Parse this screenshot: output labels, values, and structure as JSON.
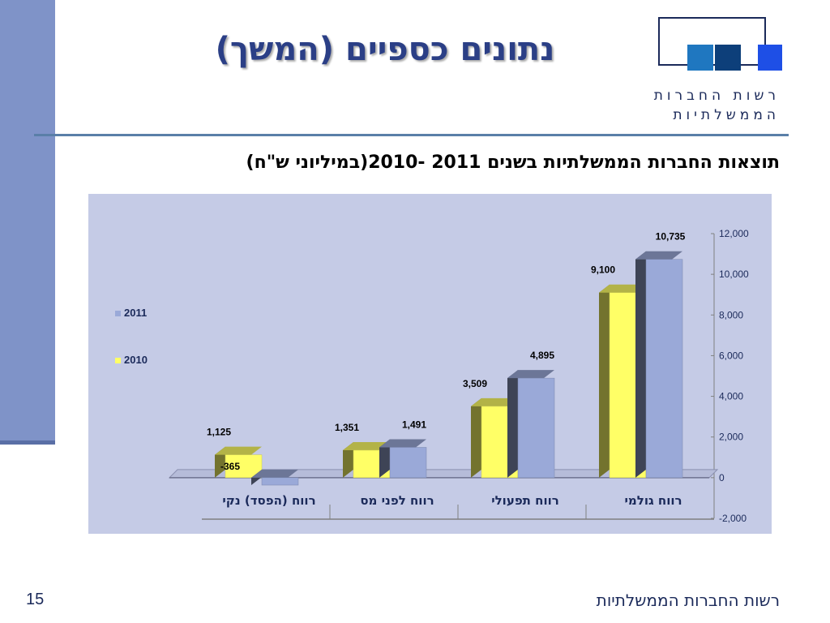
{
  "slide": {
    "title": "נתונים כספיים (המשך)",
    "subtitle": "תוצאות החברות הממשלתיות בשנים 2011 -2010(במיליוני ש\"ח)",
    "footer": "רשות החברות הממשלתיות",
    "page_number": "15"
  },
  "logo": {
    "line1": "רשות החברות",
    "line2": "הממשלתיות",
    "square_colors": [
      "#1f77c0",
      "#0d3f7a",
      "#1e4fe6"
    ]
  },
  "chart_data": {
    "type": "bar",
    "categories": [
      "רווח גולמי",
      "רווח תפעולי",
      "רווח לפני מס",
      "רווח (הפסד) נקי"
    ],
    "series": [
      {
        "name": "2010",
        "values": [
          9100,
          3509,
          1351,
          1125
        ],
        "labels": [
          "9,100",
          "3,509",
          "1,351",
          "1,125"
        ],
        "color": "#ffff66"
      },
      {
        "name": "2011",
        "values": [
          10735,
          4895,
          1491,
          -365
        ],
        "labels": [
          "10,735",
          "4,895",
          "1,491",
          "-365"
        ],
        "color": "#9aa9d8"
      }
    ],
    "ylim": [
      -2000,
      12000
    ],
    "yticks": [
      -2000,
      0,
      2000,
      4000,
      6000,
      8000,
      10000,
      12000
    ],
    "ytick_labels": [
      "-2,000",
      "0",
      "2,000",
      "4,000",
      "6,000",
      "8,000",
      "10,000",
      "12,000"
    ],
    "axis_side": "right",
    "legend": [
      "2011",
      "2010"
    ],
    "legend_position": "left",
    "gridlines": false,
    "colors": {
      "background": "#c5cbe6",
      "axis": "#808080",
      "label_text": "#1b2a5a"
    }
  }
}
